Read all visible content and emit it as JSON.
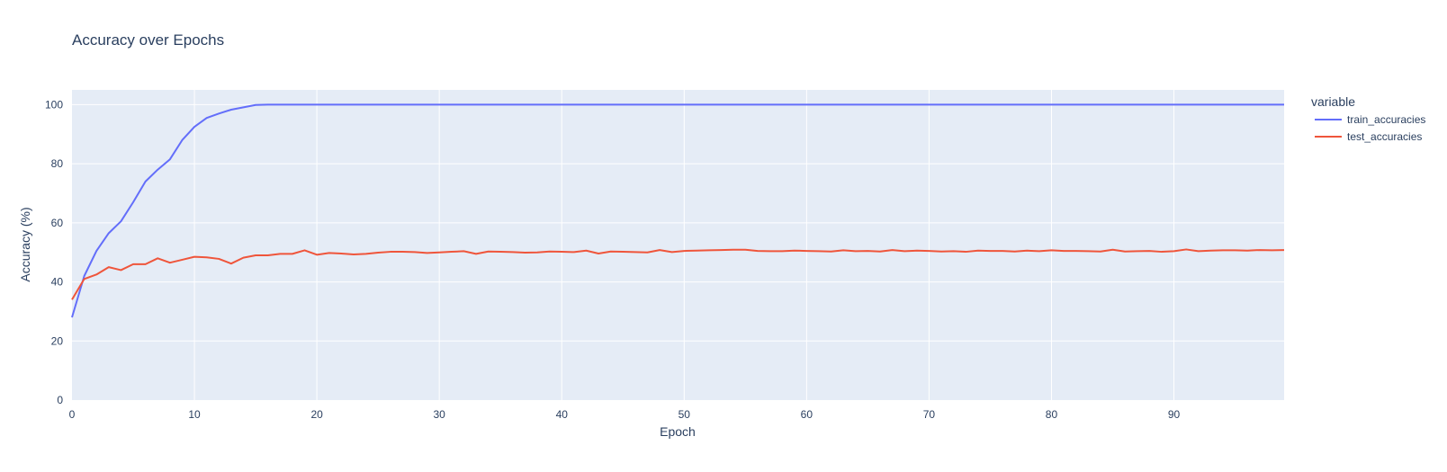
{
  "chart_data": {
    "type": "line",
    "title": "Accuracy over Epochs",
    "xlabel": "Epoch",
    "ylabel": "Accuracy (%)",
    "xlim": [
      0,
      99
    ],
    "ylim": [
      0,
      105
    ],
    "x_ticks": [
      0,
      10,
      20,
      30,
      40,
      50,
      60,
      70,
      80,
      90
    ],
    "y_ticks": [
      0,
      20,
      40,
      60,
      80,
      100
    ],
    "grid": true,
    "legend": {
      "title": "variable",
      "position": "right"
    },
    "series": [
      {
        "name": "train_accuracies",
        "color": "#636efa",
        "values": [
          28,
          42,
          50.5,
          56.5,
          60.5,
          67,
          74,
          78,
          81.5,
          88,
          92.5,
          95.5,
          97,
          98.3,
          99.1,
          99.9,
          100,
          100,
          100,
          100,
          100,
          100,
          100,
          100,
          100,
          100,
          100,
          100,
          100,
          100,
          100,
          100,
          100,
          100,
          100,
          100,
          100,
          100,
          100,
          100,
          100,
          100,
          100,
          100,
          100,
          100,
          100,
          100,
          100,
          100,
          100,
          100,
          100,
          100,
          100,
          100,
          100,
          100,
          100,
          100,
          100,
          100,
          100,
          100,
          100,
          100,
          100,
          100,
          100,
          100,
          100,
          100,
          100,
          100,
          100,
          100,
          100,
          100,
          100,
          100,
          100,
          100,
          100,
          100,
          100,
          100,
          100,
          100,
          100,
          100,
          100,
          100,
          100,
          100,
          100,
          100,
          100,
          100,
          100,
          100
        ]
      },
      {
        "name": "test_accuracies",
        "color": "#ef553b",
        "values": [
          34,
          41,
          42.5,
          45,
          44,
          46,
          46,
          48,
          46.5,
          47.5,
          48.5,
          48.3,
          47.8,
          46.2,
          48.2,
          49,
          49,
          49.5,
          49.5,
          50.7,
          49.2,
          49.8,
          49.6,
          49.3,
          49.5,
          49.9,
          50.2,
          50.2,
          50.1,
          49.8,
          50,
          50.2,
          50.4,
          49.5,
          50.3,
          50.2,
          50.1,
          49.9,
          50,
          50.3,
          50.2,
          50.1,
          50.6,
          49.6,
          50.3,
          50.2,
          50.1,
          50,
          50.8,
          50.1,
          50.5,
          50.6,
          50.7,
          50.8,
          50.9,
          50.9,
          50.5,
          50.4,
          50.4,
          50.6,
          50.5,
          50.4,
          50.3,
          50.7,
          50.4,
          50.5,
          50.3,
          50.8,
          50.4,
          50.6,
          50.5,
          50.3,
          50.4,
          50.2,
          50.6,
          50.5,
          50.5,
          50.3,
          50.6,
          50.4,
          50.7,
          50.5,
          50.5,
          50.4,
          50.3,
          50.9,
          50.3,
          50.4,
          50.5,
          50.2,
          50.4,
          51,
          50.4,
          50.6,
          50.7,
          50.7,
          50.6,
          50.8,
          50.7,
          50.8
        ]
      }
    ]
  }
}
